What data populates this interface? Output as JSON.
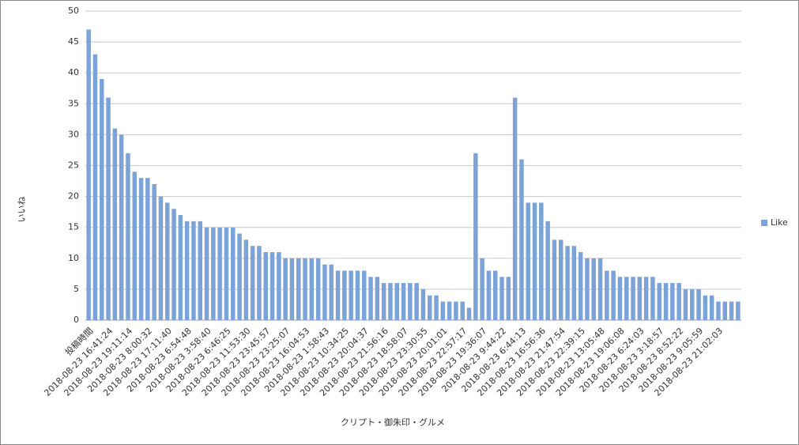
{
  "chart_data": {
    "type": "bar",
    "x_label": "クリプト・御朱印・グルメ",
    "y_label": "いいね",
    "categories": [
      "投稿時間",
      null,
      null,
      "2018-08-23 16:41:24",
      null,
      null,
      "2018-08-23 19:11:14",
      null,
      null,
      "2018-08-23 8:00:32",
      null,
      null,
      "2018-08-23 17:11:40",
      null,
      null,
      "2018-08-23 6:54:48",
      null,
      null,
      "2018-08-23 3:58:40",
      null,
      null,
      "2018-08-23 6:46:25",
      null,
      null,
      "2018-08-23 11:53:30",
      null,
      null,
      "2018-08-23 23:45:57",
      null,
      null,
      "2018-08-23 23:25:07",
      null,
      null,
      "2018-08-23 16:04:53",
      null,
      null,
      "2018-08-23 1:58:43",
      null,
      null,
      "2018-08-23 10:34:25",
      null,
      null,
      "2018-08-23 20:04:37",
      null,
      null,
      "2018-08-23 21:56:16",
      null,
      null,
      "2018-08-23 18:58:07",
      null,
      null,
      "2018-08-23 23:30:55",
      null,
      null,
      "2018-08-23 20:01:01",
      null,
      null,
      "2018-08-23 22:57:17",
      null,
      null,
      "2018-08-23 19:36:07",
      null,
      null,
      "2018-08-23 9:44:22",
      null,
      null,
      "2018-08-23 6:44:13",
      null,
      null,
      "2018-08-23 16:56:36",
      null,
      null,
      "2018-08-23 21:47:54",
      null,
      null,
      "2018-08-23 22:39:15",
      null,
      null,
      "2018-08-23 13:05:48",
      null,
      null,
      "2018-08-23 19:06:08",
      null,
      null,
      "2018-08-23 6:24:03",
      null,
      null,
      "2018-08-23 3:18:57",
      null,
      null,
      "2018-08-23 8:52:22",
      null,
      null,
      "2018-08-23 9:05:59",
      null,
      null,
      "2018-08-23 21:02:03",
      null,
      null,
      null
    ],
    "series": [
      {
        "name": "Like",
        "color": "#7ba3d8",
        "values": [
          47,
          43,
          39,
          36,
          31,
          30,
          27,
          24,
          23,
          23,
          22,
          20,
          19,
          18,
          17,
          16,
          16,
          16,
          15,
          15,
          15,
          15,
          15,
          14,
          13,
          12,
          12,
          11,
          11,
          11,
          10,
          10,
          10,
          10,
          10,
          10,
          9,
          9,
          8,
          8,
          8,
          8,
          8,
          7,
          7,
          6,
          6,
          6,
          6,
          6,
          6,
          5,
          4,
          4,
          3,
          3,
          3,
          3,
          2,
          27,
          10,
          8,
          8,
          7,
          7,
          36,
          26,
          19,
          19,
          19,
          16,
          13,
          13,
          12,
          12,
          11,
          10,
          10,
          10,
          8,
          8,
          7,
          7,
          7,
          7,
          7,
          7,
          6,
          6,
          6,
          6,
          5,
          5,
          5,
          4,
          4,
          3,
          3,
          3,
          3
        ]
      }
    ],
    "ylim": [
      0,
      50
    ],
    "yticks": [
      0,
      5,
      10,
      15,
      20,
      25,
      30,
      35,
      40,
      45,
      50
    ],
    "grid": true,
    "legend": "right"
  }
}
